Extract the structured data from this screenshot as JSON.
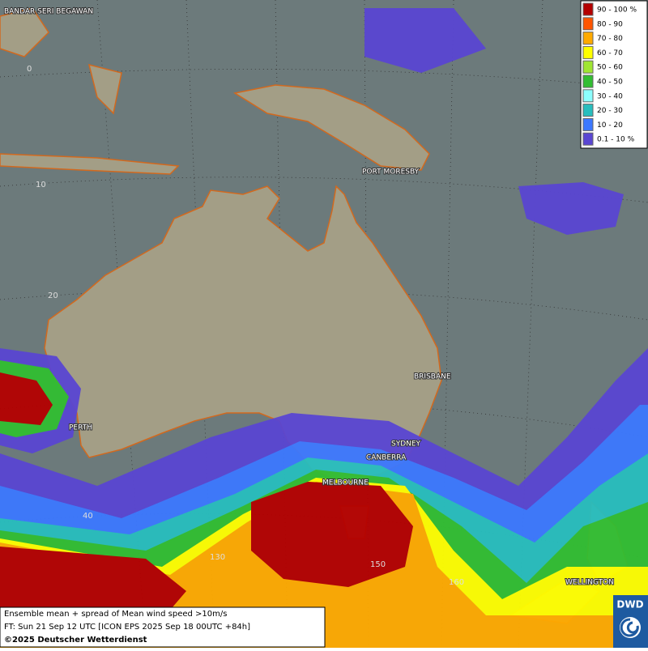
{
  "legend": {
    "items": [
      {
        "label": "90 - 100 %",
        "color": "#b40000"
      },
      {
        "label": "80 - 90",
        "color": "#ff5500"
      },
      {
        "label": "70 - 80",
        "color": "#ffaa00"
      },
      {
        "label": "60 - 70",
        "color": "#ffff00"
      },
      {
        "label": "50 - 60",
        "color": "#a0e632"
      },
      {
        "label": "40 - 50",
        "color": "#32be32"
      },
      {
        "label": "30 - 40",
        "color": "#8cffff"
      },
      {
        "label": "20 - 30",
        "color": "#28bebe"
      },
      {
        "label": "10 - 20",
        "color": "#3c78ff"
      },
      {
        "label": "0.1 - 10 %",
        "color": "#5a46d2"
      }
    ]
  },
  "cities": [
    "BANDAR SERI BEGAWAN",
    "PORT MORESBY",
    "BRISBANE",
    "PERTH",
    "SYDNEY",
    "CANBERRA",
    "MELBOURNE",
    "WELLINGTON"
  ],
  "latitude_labels": [
    0,
    10,
    20,
    40
  ],
  "longitude_labels": [
    130,
    150,
    160
  ],
  "footer": {
    "lines": [
      "Ensemble mean + spread of Mean wind speed >10m/s",
      "FT: Sun 21 Sep 12 UTC [ICON EPS 2025 Sep 18 00UTC +84h]",
      "©2025 Deutscher Wetterdienst"
    ]
  },
  "logo": "DWD"
}
